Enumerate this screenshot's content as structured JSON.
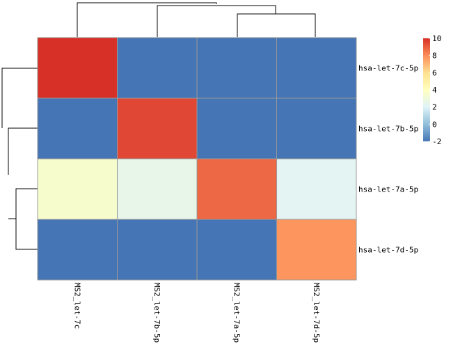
{
  "chart_data": {
    "type": "heatmap",
    "title": "",
    "rows": [
      "hsa-let-7c-5p",
      "hsa-let-7b-5p",
      "hsa-let-7a-5p",
      "hsa-let-7d-5p"
    ],
    "columns": [
      "MS2_let-7c",
      "MS2_let-7b-5p",
      "MS2_let-7a-5p",
      "MS2_let-7d-5p"
    ],
    "values": [
      [
        10.0,
        -2.0,
        -2.0,
        -2.0
      ],
      [
        -2.0,
        9.5,
        -2.0,
        -2.0
      ],
      [
        3.5,
        2.5,
        8.8,
        2.2
      ],
      [
        -2.0,
        -2.0,
        -2.0,
        7.8
      ]
    ],
    "colorbar": {
      "min": -2,
      "max": 10,
      "ticks": [
        "10",
        "8",
        "6",
        "4",
        "2",
        "0",
        "-2"
      ],
      "colors": [
        "#4575b4",
        "#91bfdb",
        "#e0f3f8",
        "#ffffbf",
        "#fee090",
        "#fc8d59",
        "#d73027"
      ]
    },
    "row_dendrogram": true,
    "column_dendrogram": true,
    "cell_border_color": "#999999"
  }
}
